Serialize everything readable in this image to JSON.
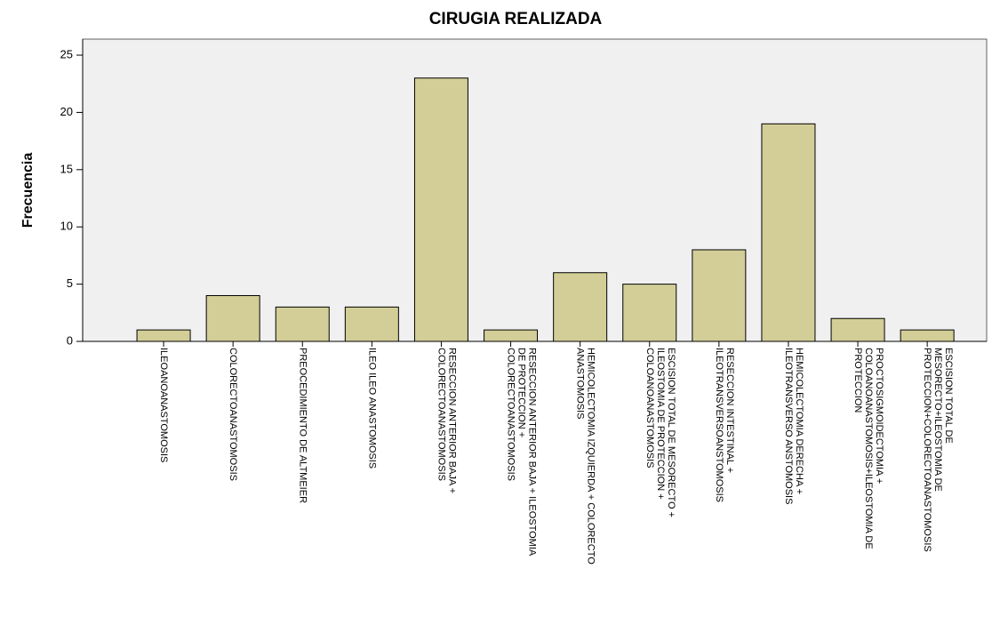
{
  "chart_data": {
    "type": "bar",
    "title": "CIRUGIA REALIZADA",
    "y_label": "Frecuencia",
    "categories": [
      [
        "ILEOANOANASTOMOSIS"
      ],
      [
        "COLORECTOANASTOMOSIS"
      ],
      [
        "PREOCEDIMIENTO DE ALTMEIER"
      ],
      [
        "ILEO ILEO ANASTOMOSIS"
      ],
      [
        "RESECCION ANTERIOR BAJA +",
        "COLORECTOANASTOMOSIS"
      ],
      [
        "RESECCION ANTERIOR BAJA + ILEOSTOMIA",
        "DE PROTECCION +",
        "COLORECTOANASTOMOSIS"
      ],
      [
        "HEMICOLECTOMIA IZQUIERDA + COLORECTO",
        "ANASTOMOSIS"
      ],
      [
        "ESCISION TOTAL DE MESORECTO +",
        "ILEOSTOMIA DE PROTECCION +",
        "COLOANOANASTOMOSIS"
      ],
      [
        "RESECCION INTESTINAL +",
        "ILEOTRANSVERSOANSTOMOSIS"
      ],
      [
        "HEMICOLECTOMIA DERECHA +",
        "ILEOTRANSVERSO ANSTOMOSIS"
      ],
      [
        "PROCTOSIGMOIDECTOMIA +",
        "COLOANOANASTOMOSIS+ILEOSTOMIA DE",
        "PROTECCION"
      ],
      [
        "ESCISION TOTAL DE",
        "MESORECTO+ILEOSTOMIA DE",
        "PROTECCION+COLORECTOANASTOMOSIS"
      ]
    ],
    "values": [
      1,
      4,
      3,
      3,
      23,
      1,
      6,
      5,
      8,
      19,
      2,
      1
    ],
    "color": "#d3ce97",
    "background": "#f0f0f0",
    "ylim": [
      0,
      26.4
    ],
    "yticks": [
      0,
      5,
      10,
      15,
      20,
      25
    ]
  }
}
